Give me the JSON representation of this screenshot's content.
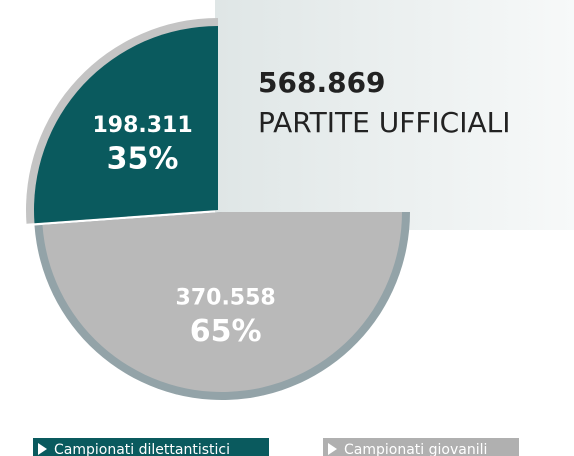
{
  "chart_data": {
    "type": "pie",
    "total": "568.869",
    "title": "PARTITE UFFICIALI",
    "categories": [
      "Campionati dilettantistici",
      "Campionati giovanili"
    ],
    "values": [
      198311,
      370558
    ],
    "value_labels": [
      "198.311",
      "370.558"
    ],
    "percent_labels": [
      "35%",
      "65%"
    ],
    "colors": [
      "#0a5a5e",
      "#b9b9b9"
    ],
    "rim_colors": [
      "#c4c4c4",
      "#93a3a8"
    ]
  }
}
